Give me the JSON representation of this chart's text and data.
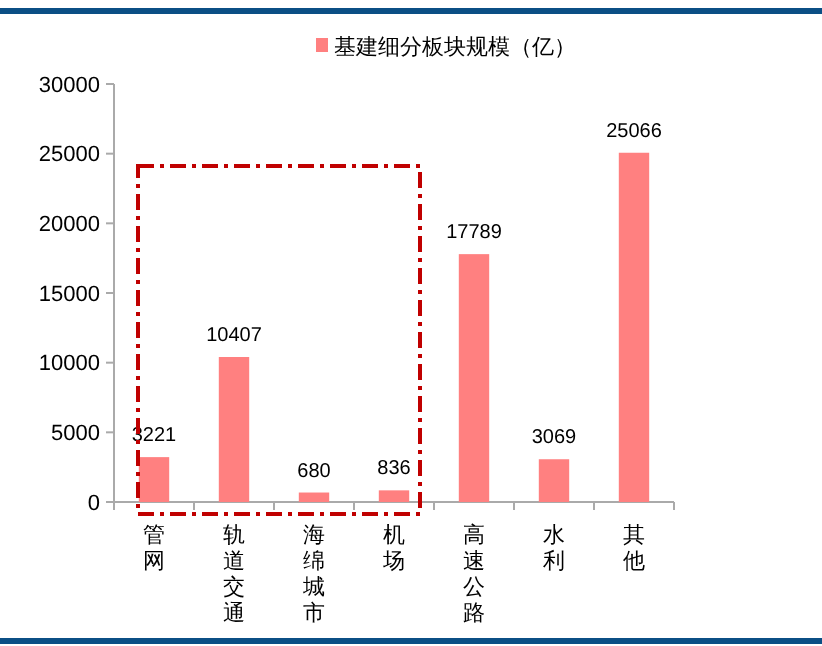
{
  "chart_data": {
    "type": "bar",
    "categories": [
      "管网",
      "轨道交通",
      "海绵城市",
      "机场",
      "高速公路",
      "水利",
      "其他"
    ],
    "series": [
      {
        "name": "基建细分板块规模（亿）",
        "color": "#ff8080",
        "values": [
          3221,
          10407,
          680,
          836,
          17789,
          3069,
          25066
        ]
      }
    ],
    "ylim": [
      0,
      30000
    ],
    "yticks": [
      0,
      5000,
      10000,
      15000,
      20000,
      25000,
      30000
    ],
    "data_labels": true,
    "legend": "top",
    "grid": false
  }
}
